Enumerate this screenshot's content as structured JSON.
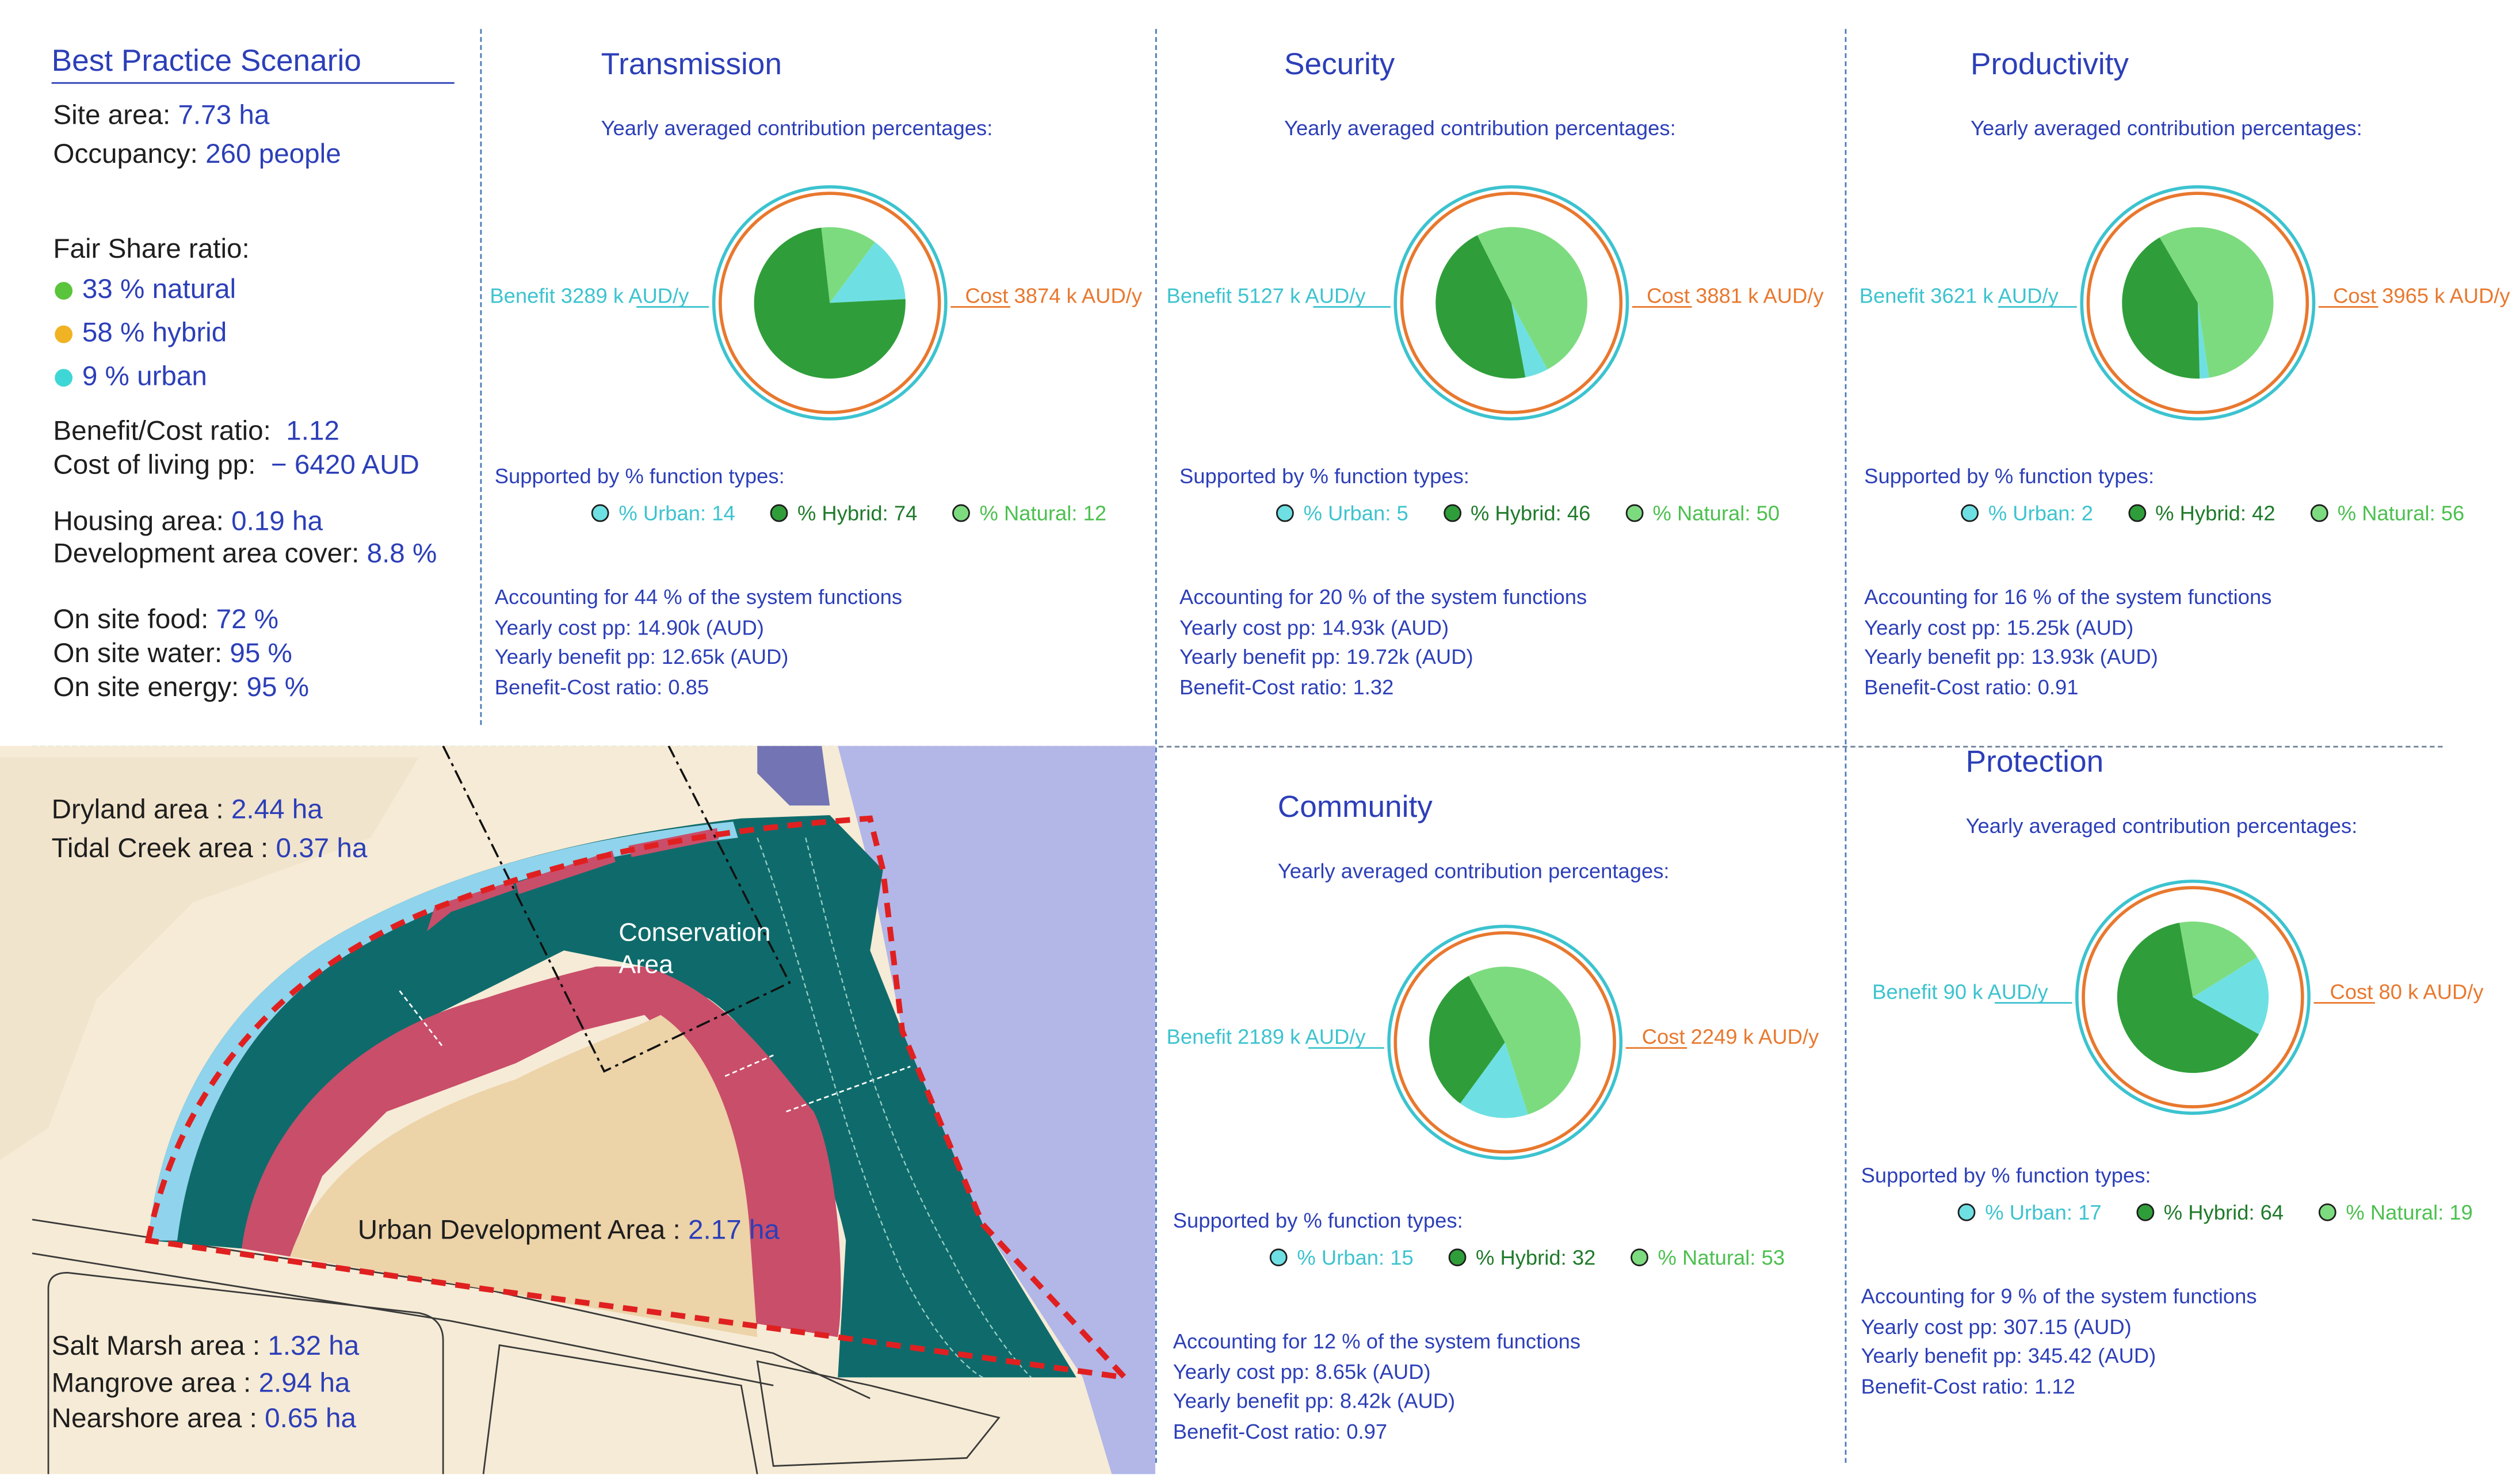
{
  "summary": {
    "title": "Best Practice Scenario",
    "site_area_label": "Site area:",
    "site_area_value": "7.73 ha",
    "occupancy_label": "Occupancy:",
    "occupancy_value": "260 people",
    "fair_share_label": "Fair Share ratio:",
    "fair_share": [
      {
        "text": "33 % natural",
        "color": "#5ac43c"
      },
      {
        "text": "58 % hybrid",
        "color": "#f0b323"
      },
      {
        "text": "9 % urban",
        "color": "#3fd6d6"
      }
    ],
    "bcr_label": "Benefit/Cost ratio:",
    "bcr_value": "1.12",
    "cost_living_label": "Cost of living pp:",
    "cost_living_value": "− 6420 AUD",
    "housing_label": "Housing area:",
    "housing_value": "0.19 ha",
    "dev_cover_label": "Development area cover:",
    "dev_cover_value": "8.8 %",
    "food_label": "On site food:",
    "food_value": "72 %",
    "water_label": "On site water:",
    "water_value": "95 %",
    "energy_label": "On site energy:",
    "energy_value": "95 %"
  },
  "map": {
    "dryland_label": "Dryland area :",
    "dryland_value": "2.44 ha",
    "tidal_label": "Tidal Creek area :",
    "tidal_value": "0.37 ha",
    "conservation_line1": "Conservation",
    "conservation_line2": "Area",
    "urban_dev_label": "Urban Development Area :",
    "urban_dev_value": "2.17 ha",
    "saltmarsh_label": "Salt Marsh area :",
    "saltmarsh_value": "1.32 ha",
    "mangrove_label": "Mangrove area :",
    "mangrove_value": "2.94 ha",
    "nearshore_label": "Nearshore area :",
    "nearshore_value": "0.65 ha"
  },
  "common": {
    "yearly_label": "Yearly averaged contribution percentages:",
    "supported_label": "Supported by % function types:"
  },
  "colors": {
    "urban": "#6ee0e3",
    "hybrid": "#2f9e3a",
    "natural": "#7ddb7f",
    "benefit": "#3cc3cf",
    "cost": "#e8782e",
    "text_blue": "#2c3fb8"
  },
  "panels": [
    {
      "title": "Transmission",
      "benefit": "Benefit 3289 k AUD/y",
      "cost": "Cost 3874 k AUD/y",
      "urban_pct": 14,
      "hybrid_pct": 74,
      "natural_pct": 12,
      "legend": [
        "% Urban: 14",
        "% Hybrid: 74",
        "% Natural: 12"
      ],
      "accounting": "Accounting for 44 % of the system functions",
      "cost_pp": "Yearly cost pp: 14.90k (AUD)",
      "benefit_pp": "Yearly benefit pp: 12.65k (AUD)",
      "bcr": "Benefit-Cost ratio: 0.85"
    },
    {
      "title": "Security",
      "benefit": "Benefit 5127 k AUD/y",
      "cost": "Cost 3881 k AUD/y",
      "urban_pct": 5,
      "hybrid_pct": 46,
      "natural_pct": 50,
      "legend": [
        "% Urban: 5",
        "% Hybrid: 46",
        "% Natural: 50"
      ],
      "accounting": "Accounting for 20 % of the system functions",
      "cost_pp": "Yearly cost pp: 14.93k (AUD)",
      "benefit_pp": "Yearly benefit pp: 19.72k (AUD)",
      "bcr": "Benefit-Cost ratio: 1.32"
    },
    {
      "title": "Productivity",
      "benefit": "Benefit 3621 k AUD/y",
      "cost": "Cost 3965 k AUD/y",
      "urban_pct": 2,
      "hybrid_pct": 42,
      "natural_pct": 56,
      "legend": [
        "% Urban: 2",
        "% Hybrid: 42",
        "% Natural: 56"
      ],
      "accounting": "Accounting for 16 % of the system functions",
      "cost_pp": "Yearly cost pp: 15.25k (AUD)",
      "benefit_pp": "Yearly benefit pp: 13.93k (AUD)",
      "bcr": "Benefit-Cost ratio: 0.91"
    },
    {
      "title": "Community",
      "benefit": "Benefit 2189 k AUD/y",
      "cost": "Cost 2249 k AUD/y",
      "urban_pct": 15,
      "hybrid_pct": 32,
      "natural_pct": 53,
      "legend": [
        "% Urban: 15",
        "% Hybrid: 32",
        "% Natural: 53"
      ],
      "accounting": "Accounting for 12 % of the system functions",
      "cost_pp": "Yearly cost pp: 8.65k (AUD)",
      "benefit_pp": "Yearly benefit pp: 8.42k (AUD)",
      "bcr": "Benefit-Cost ratio: 0.97"
    },
    {
      "title": "Protection",
      "benefit": "Benefit 90 k AUD/y",
      "cost": "Cost 80 k AUD/y",
      "urban_pct": 17,
      "hybrid_pct": 64,
      "natural_pct": 19,
      "legend": [
        "% Urban: 17",
        "% Hybrid: 64",
        "% Natural: 19"
      ],
      "accounting": "Accounting for 9 % of the system functions",
      "cost_pp": "Yearly cost pp: 307.15 (AUD)",
      "benefit_pp": "Yearly benefit pp: 345.42 (AUD)",
      "bcr": "Benefit-Cost ratio: 1.12"
    }
  ]
}
